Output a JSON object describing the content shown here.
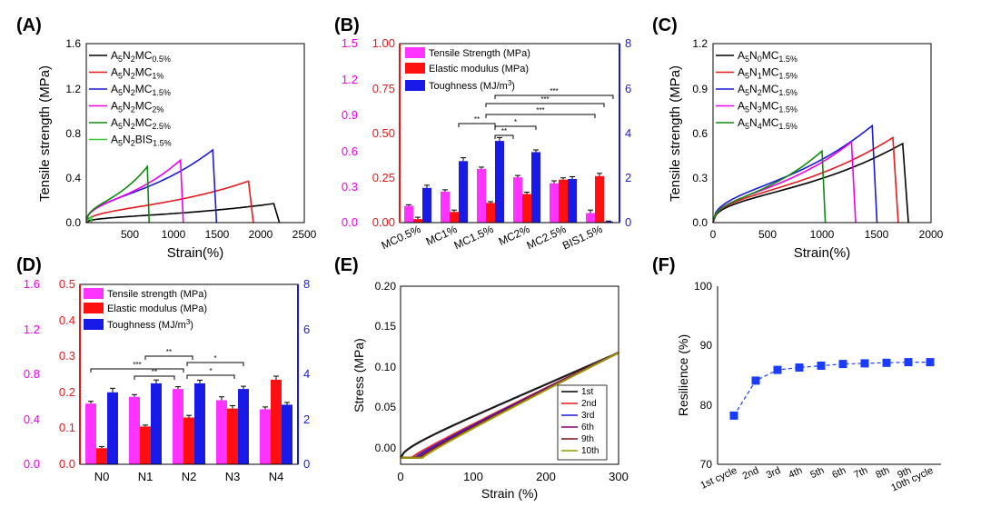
{
  "figure": {
    "panel_labels": [
      "(A)",
      "(B)",
      "(C)",
      "(D)",
      "(E)",
      "(F)"
    ]
  },
  "chart_data": [
    {
      "panel": "(A)",
      "type": "line",
      "xlabel": "Strain(%)",
      "ylabel": "Tensile strength (MPa)",
      "xlim": [
        0,
        2500
      ],
      "ylim": [
        0,
        1.6
      ],
      "x_ticks": [
        "500",
        "1000",
        "1500",
        "2000",
        "2500"
      ],
      "y_ticks": [
        "0.0",
        "0.4",
        "0.8",
        "1.2",
        "1.6"
      ],
      "legend_position": "top-left",
      "series": [
        {
          "name": "A5N2MC0.5%",
          "legend": {
            "base": "A",
            "s1": "5",
            "m1": "N",
            "s2": "2",
            "m2": "MC",
            "s3": "0.5%"
          },
          "color": "#000000",
          "break_strain": 2150,
          "break_stress": 0.17
        },
        {
          "name": "A5N2MC1%",
          "legend": {
            "base": "A",
            "s1": "5",
            "m1": "N",
            "s2": "2",
            "m2": "MC",
            "s3": "1%"
          },
          "color": "#e41a1c",
          "break_strain": 1860,
          "break_stress": 0.37
        },
        {
          "name": "A5N2MC1.5%",
          "legend": {
            "base": "A",
            "s1": "5",
            "m1": "N",
            "s2": "2",
            "m2": "MC",
            "s3": "1.5%"
          },
          "color": "#1a1ad6",
          "break_strain": 1450,
          "break_stress": 0.65
        },
        {
          "name": "A5N2MC2%",
          "legend": {
            "base": "A",
            "s1": "5",
            "m1": "N",
            "s2": "2",
            "m2": "MC",
            "s3": "2%"
          },
          "color": "#ee00ee",
          "break_strain": 1080,
          "break_stress": 0.56
        },
        {
          "name": "A5N2MC2.5%",
          "legend": {
            "base": "A",
            "s1": "5",
            "m1": "N",
            "s2": "2",
            "m2": "MC",
            "s3": "2.5%"
          },
          "color": "#108a10",
          "break_strain": 700,
          "break_stress": 0.5
        },
        {
          "name": "A5N2BIS1.5%",
          "legend": {
            "base": "A",
            "s1": "5",
            "m1": "N",
            "s2": "2",
            "m2": "BIS",
            "s3": "1.5%"
          },
          "color": "#33cc33",
          "break_strain": 60,
          "break_stress": 0.06
        }
      ]
    },
    {
      "panel": "(B)",
      "type": "bar",
      "categories": [
        "MC0.5%",
        "MC1%",
        "MC1.5%",
        "MC2%",
        "MC2.5%",
        "BIS1.5%"
      ],
      "y_axes": {
        "tensile": {
          "ticks": [
            "0.0",
            "0.3",
            "0.6",
            "0.9",
            "1.2",
            "1.5"
          ],
          "range": [
            0,
            1.5
          ],
          "color": "#ee00ee"
        },
        "modulus": {
          "ticks": [
            "0.00",
            "0.25",
            "0.50",
            "0.75",
            "1.00"
          ],
          "range": [
            0,
            1.0
          ],
          "color": "#e41a1c"
        },
        "toughness": {
          "ticks": [
            "0",
            "2",
            "4",
            "6",
            "8"
          ],
          "range": [
            0,
            8
          ],
          "color": "#1a1ad6"
        }
      },
      "series": [
        {
          "name": "Tensile Strength (MPa)",
          "color": "#ff33ff",
          "axis": "tensile",
          "values": [
            0.14,
            0.26,
            0.45,
            0.38,
            0.33,
            0.08
          ],
          "errors": [
            0.01,
            0.015,
            0.015,
            0.015,
            0.02,
            0.025
          ]
        },
        {
          "name": "Elastic modulus (MPa)",
          "color": "#ff1010",
          "axis": "modulus",
          "values": [
            0.02,
            0.06,
            0.11,
            0.16,
            0.24,
            0.26
          ],
          "errors": [
            0.01,
            0.01,
            0.007,
            0.01,
            0.01,
            0.015
          ]
        },
        {
          "name": "Toughness (MJ/m3)",
          "color": "#1a1ae6",
          "axis": "toughness",
          "values": [
            1.55,
            2.75,
            3.65,
            3.15,
            1.95,
            0.05
          ],
          "errors": [
            0.12,
            0.15,
            0.15,
            0.1,
            0.1,
            0.02
          ]
        }
      ],
      "legend": {
        "tensile": "Tensile Strength (MPa)",
        "modulus": "Elastic modulus (MPa)",
        "toughness_base": "Toughness (MJ/m",
        "toughness_sup": "3",
        "toughness_end": ")"
      },
      "significance": [
        "**",
        "**",
        "*",
        "***",
        "***",
        "***"
      ]
    },
    {
      "panel": "(C)",
      "type": "line",
      "xlabel": "Strain(%)",
      "ylabel": "Tensile strength (MPa)",
      "xlim": [
        0,
        2000
      ],
      "ylim": [
        0,
        1.2
      ],
      "x_ticks": [
        "0",
        "500",
        "1000",
        "1500",
        "2000"
      ],
      "y_ticks": [
        "0.0",
        "0.3",
        "0.6",
        "0.9",
        "1.2"
      ],
      "legend_position": "top-left",
      "series": [
        {
          "name": "A5N0MC1.5%",
          "legend": {
            "base": "A",
            "s1": "5",
            "m1": "N",
            "s2": "0",
            "m2": "MC",
            "s3": "1.5%"
          },
          "color": "#000000",
          "break_strain": 1740,
          "break_stress": 0.53
        },
        {
          "name": "A5N1MC1.5%",
          "legend": {
            "base": "A",
            "s1": "5",
            "m1": "N",
            "s2": "1",
            "m2": "MC",
            "s3": "1.5%"
          },
          "color": "#e41a1c",
          "break_strain": 1650,
          "break_stress": 0.57
        },
        {
          "name": "A5N2MC1.5%",
          "legend": {
            "base": "A",
            "s1": "5",
            "m1": "N",
            "s2": "2",
            "m2": "MC",
            "s3": "1.5%"
          },
          "color": "#1a1ad6",
          "break_strain": 1460,
          "break_stress": 0.65
        },
        {
          "name": "A5N3MC1.5%",
          "legend": {
            "base": "A",
            "s1": "5",
            "m1": "N",
            "s2": "3",
            "m2": "MC",
            "s3": "1.5%"
          },
          "color": "#ee00ee",
          "break_strain": 1270,
          "break_stress": 0.54
        },
        {
          "name": "A5N4MC1.5%",
          "legend": {
            "base": "A",
            "s1": "5",
            "m1": "N",
            "s2": "4",
            "m2": "MC",
            "s3": "1.5%"
          },
          "color": "#108a10",
          "break_strain": 1000,
          "break_stress": 0.48
        }
      ]
    },
    {
      "panel": "(D)",
      "type": "bar",
      "categories": [
        "N0",
        "N1",
        "N2",
        "N3",
        "N4"
      ],
      "y_axes": {
        "tensile": {
          "ticks": [
            "0.0",
            "0.4",
            "0.8",
            "1.2",
            "1.6"
          ],
          "range": [
            0,
            1.6
          ],
          "color": "#ee00ee"
        },
        "modulus": {
          "ticks": [
            "0.0",
            "0.1",
            "0.2",
            "0.3",
            "0.4",
            "0.5"
          ],
          "range": [
            0,
            0.5
          ],
          "color": "#e41a1c"
        },
        "toughness": {
          "ticks": [
            "0",
            "2",
            "4",
            "6",
            "8"
          ],
          "range": [
            0,
            8
          ],
          "color": "#1a1ad6"
        }
      },
      "series": [
        {
          "name": "Tensile strength (MPa)",
          "color": "#ff33ff",
          "axis": "tensile",
          "values": [
            0.54,
            0.6,
            0.67,
            0.57,
            0.49
          ],
          "errors": [
            0.02,
            0.02,
            0.02,
            0.03,
            0.02
          ]
        },
        {
          "name": "Elastic modulus (MPa)",
          "color": "#ff1010",
          "axis": "modulus",
          "values": [
            0.045,
            0.105,
            0.13,
            0.155,
            0.235
          ],
          "errors": [
            0.004,
            0.004,
            0.006,
            0.008,
            0.01
          ]
        },
        {
          "name": "Toughness (MJ/m3)",
          "color": "#1a1ae6",
          "axis": "toughness",
          "values": [
            3.2,
            3.6,
            3.6,
            3.35,
            2.65
          ],
          "errors": [
            0.18,
            0.15,
            0.14,
            0.12,
            0.1
          ]
        }
      ],
      "legend": {
        "tensile": "Tensile strength (MPa)",
        "modulus": "Elastic modulus (MPa)",
        "toughness_base": "Toughness (MJ/m",
        "toughness_sup": "3",
        "toughness_end": ")"
      },
      "significance": [
        "***",
        "**",
        "**",
        "*",
        "*"
      ]
    },
    {
      "panel": "(E)",
      "type": "line",
      "xlabel": "Strain (%)",
      "ylabel": "Stress (MPa)",
      "xlim": [
        0,
        300
      ],
      "ylim": [
        -0.02,
        0.2
      ],
      "x_ticks": [
        "0",
        "100",
        "200",
        "300"
      ],
      "y_ticks": [
        "0.00",
        "0.05",
        "0.10",
        "0.15",
        "0.20"
      ],
      "legend_position": "bottom-right",
      "series": [
        {
          "name": "1st",
          "color": "#000000",
          "onset": 0
        },
        {
          "name": "2nd",
          "color": "#e41a1c",
          "onset": 15
        },
        {
          "name": "3rd",
          "color": "#1a1ad6",
          "onset": 20
        },
        {
          "name": "6th",
          "color": "#800080",
          "onset": 24
        },
        {
          "name": "9th",
          "color": "#7a1010",
          "onset": 27
        },
        {
          "name": "10th",
          "color": "#999900",
          "onset": 30
        }
      ]
    },
    {
      "panel": "(F)",
      "type": "line",
      "ylabel": "Resilience (%)",
      "categories": [
        "1st cycle",
        "2nd",
        "3rd",
        "4th",
        "5th",
        "6th",
        "7th",
        "8th",
        "9th",
        "10th cycle"
      ],
      "ylim": [
        70,
        100
      ],
      "y_ticks": [
        "70",
        "80",
        "90",
        "100"
      ],
      "values": [
        78.2,
        84.1,
        85.9,
        86.3,
        86.6,
        86.9,
        87.0,
        87.1,
        87.2,
        87.2
      ],
      "color": "#1a3cff"
    }
  ]
}
